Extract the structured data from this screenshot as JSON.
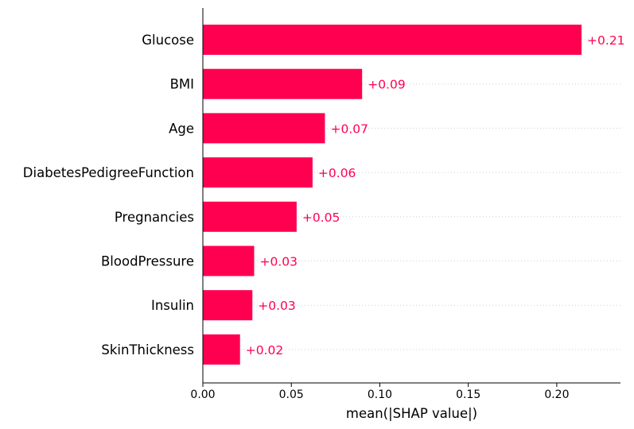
{
  "colors": {
    "bar": "#ff0051",
    "value_text": "#ff0051",
    "gridline": "#d0d0d0",
    "axis": "#000000"
  },
  "chart_data": {
    "type": "bar",
    "orientation": "horizontal",
    "categories": [
      "Glucose",
      "BMI",
      "Age",
      "DiabetesPedigreeFunction",
      "Pregnancies",
      "BloodPressure",
      "Insulin",
      "SkinThickness"
    ],
    "values": [
      0.214,
      0.09,
      0.069,
      0.062,
      0.053,
      0.029,
      0.028,
      0.021
    ],
    "value_labels": [
      "+0.21",
      "+0.09",
      "+0.07",
      "+0.06",
      "+0.05",
      "+0.03",
      "+0.03",
      "+0.02"
    ],
    "xlabel": "mean(|SHAP value|)",
    "ylabel": "",
    "xlim": [
      0,
      0.236
    ],
    "xticks": [
      0,
      0.05,
      0.1,
      0.15,
      0.2
    ],
    "xtick_labels": [
      "0.00",
      "0.05",
      "0.10",
      "0.15",
      "0.20"
    ],
    "grid": "dotted row guide lines",
    "legend": "none"
  }
}
